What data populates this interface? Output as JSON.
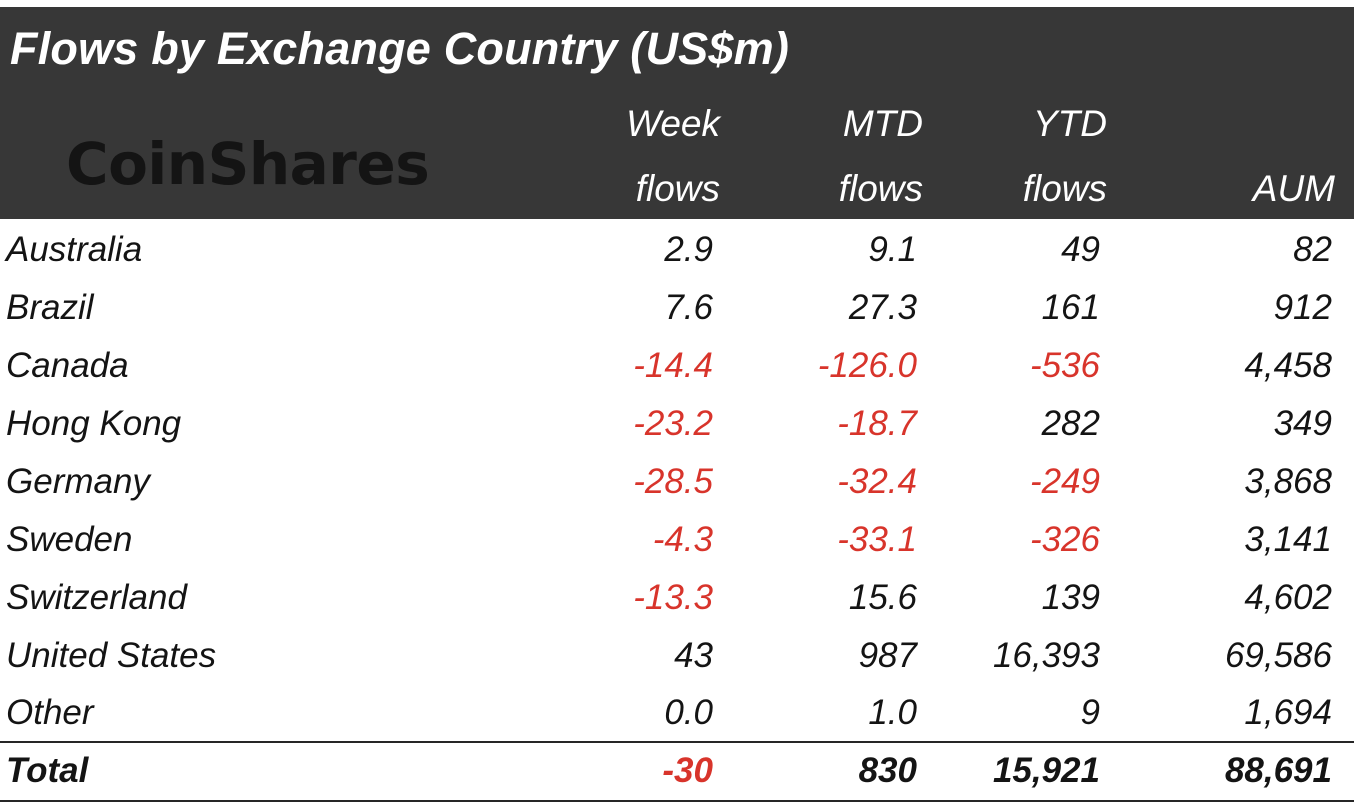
{
  "chart_data": {
    "type": "table",
    "title": "Flows by Exchange Country (US$m)",
    "logo_text": "CoinShares",
    "columns": [
      {
        "key": "week",
        "line1": "Week",
        "line2": "flows"
      },
      {
        "key": "mtd",
        "line1": "MTD",
        "line2": "flows"
      },
      {
        "key": "ytd",
        "line1": "YTD",
        "line2": "flows"
      },
      {
        "key": "aum",
        "line1": "",
        "line2": "AUM"
      }
    ],
    "rows": [
      {
        "country": "Australia",
        "week": "2.9",
        "mtd": "9.1",
        "ytd": "49",
        "aum": "82"
      },
      {
        "country": "Brazil",
        "week": "7.6",
        "mtd": "27.3",
        "ytd": "161",
        "aum": "912"
      },
      {
        "country": "Canada",
        "week": "-14.4",
        "mtd": "-126.0",
        "ytd": "-536",
        "aum": "4,458"
      },
      {
        "country": "Hong Kong",
        "week": "-23.2",
        "mtd": "-18.7",
        "ytd": "282",
        "aum": "349"
      },
      {
        "country": "Germany",
        "week": "-28.5",
        "mtd": "-32.4",
        "ytd": "-249",
        "aum": "3,868"
      },
      {
        "country": "Sweden",
        "week": "-4.3",
        "mtd": "-33.1",
        "ytd": "-326",
        "aum": "3,141"
      },
      {
        "country": "Switzerland",
        "week": "-13.3",
        "mtd": "15.6",
        "ytd": "139",
        "aum": "4,602"
      },
      {
        "country": "United States",
        "week": "43",
        "mtd": "987",
        "ytd": "16,393",
        "aum": "69,586"
      },
      {
        "country": "Other",
        "week": "0.0",
        "mtd": "1.0",
        "ytd": "9",
        "aum": "1,694"
      }
    ],
    "total": {
      "country": "Total",
      "week": "-30",
      "mtd": "830",
      "ytd": "15,921",
      "aum": "88,691"
    }
  },
  "colors": {
    "header_bg": "#373737",
    "header_text": "#ffffff",
    "logo": "#141414",
    "positive_text": "#141414",
    "negative_text": "#d8342b"
  }
}
